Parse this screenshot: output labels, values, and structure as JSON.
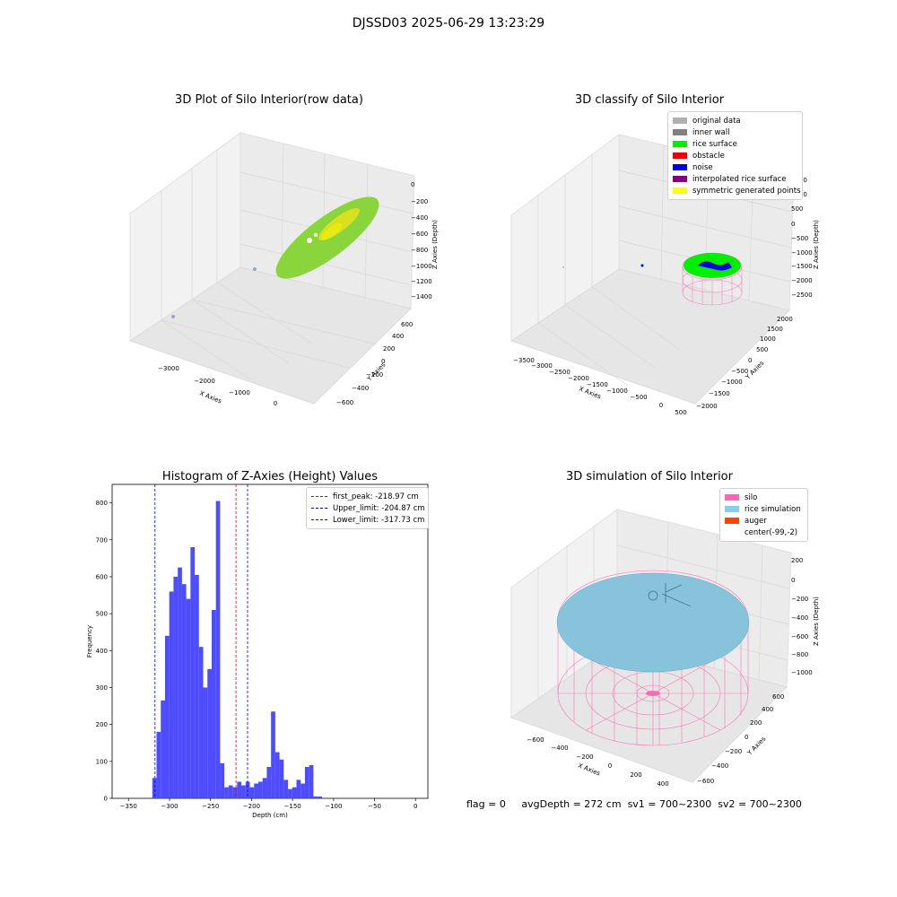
{
  "figure": {
    "suptitle": "DJSSD03 2025-06-29 13:23:29",
    "status": {
      "flag": "flag = 0",
      "avg_depth": "avgDepth = 272 cm",
      "sv1": "sv1 = 700~2300",
      "sv2": "sv2 = 700~2300"
    }
  },
  "plot_raw": {
    "title": "3D Plot of Silo Interior(row data)",
    "xlabel": "X Axies",
    "ylabel": "Y Axies",
    "zlabel": "Z Axies (Depth)",
    "xticks": [
      "−3000",
      "−2000",
      "−1000",
      "0"
    ],
    "yticks": [
      "−600",
      "−400",
      "−200",
      "0",
      "200",
      "400",
      "600"
    ],
    "zticks": [
      "0",
      "−200",
      "−400",
      "−600",
      "−800",
      "−1000",
      "−1200",
      "−1400"
    ],
    "colors": {
      "surface": "#8ad43c",
      "highlight": "#e8e000",
      "points": "#7fb0d0"
    }
  },
  "plot_classify": {
    "title": "3D classify of Silo Interior",
    "xlabel": "X Axies",
    "ylabel": "Y Axies",
    "zlabel": "Z Axies (Depth)",
    "xticks": [
      "−3500",
      "−3000",
      "−2500",
      "−2000",
      "−1500",
      "−1000",
      "−500",
      "0",
      "500"
    ],
    "yticks": [
      "−2000",
      "−1500",
      "−1000",
      "−500",
      "0",
      "500",
      "1000",
      "1500",
      "2000"
    ],
    "zticks": [
      "1500",
      "1000",
      "500",
      "0",
      "−500",
      "−1000",
      "−1500",
      "−2000",
      "−2500"
    ],
    "legend": [
      {
        "label": "original data",
        "color": "#b0b0b0"
      },
      {
        "label": "inner wall",
        "color": "#808080"
      },
      {
        "label": "rice surface",
        "color": "#00ee00"
      },
      {
        "label": "obstacle",
        "color": "#ee0000"
      },
      {
        "label": "noise",
        "color": "#0000dd"
      },
      {
        "label": "interpolated rice surface",
        "color": "#800080"
      },
      {
        "label": "symmetric generated points",
        "color": "#ffff00"
      }
    ]
  },
  "plot_sim": {
    "title": "3D simulation of Silo Interior",
    "xlabel": "X Axies",
    "ylabel": "Y Axies",
    "zlabel": "Z Axies (Depth)",
    "xticks": [
      "−600",
      "−400",
      "−200",
      "0",
      "200",
      "400"
    ],
    "yticks": [
      "−600",
      "−400",
      "−200",
      "0",
      "200",
      "400",
      "600"
    ],
    "zticks": [
      "200",
      "0",
      "−200",
      "−400",
      "−600",
      "−800",
      "−1000"
    ],
    "legend": [
      {
        "label": "silo",
        "color": "#ff69b4"
      },
      {
        "label": "rice simulation",
        "color": "#87ceeb"
      },
      {
        "label": "auger",
        "color": "#ff4500"
      },
      {
        "label": "center(-99,-2)",
        "color": "#ffffff"
      }
    ]
  },
  "chart_data": {
    "type": "bar",
    "title": "Histogram of Z-Axies (Height) Values",
    "xlabel": "Depth (cm)",
    "ylabel": "Frequency",
    "xlim": [
      -370,
      15
    ],
    "ylim": [
      0,
      850
    ],
    "xticks": [
      -350,
      -300,
      -250,
      -200,
      -150,
      -100,
      -50,
      0
    ],
    "yticks": [
      0,
      100,
      200,
      300,
      400,
      500,
      600,
      700,
      800
    ],
    "bar_color": "#4040ff",
    "bin_start": -321,
    "bin_width": 5.17,
    "values": [
      55,
      180,
      265,
      440,
      560,
      600,
      625,
      580,
      540,
      680,
      605,
      410,
      300,
      350,
      510,
      805,
      95,
      30,
      35,
      30,
      45,
      35,
      45,
      30,
      40,
      45,
      55,
      85,
      235,
      125,
      105,
      50,
      25,
      30,
      50,
      40,
      85,
      90,
      5,
      5
    ],
    "lines": [
      {
        "label": "first_peak: -218.97 cm",
        "value": -218.97,
        "color": "#dd0000"
      },
      {
        "label": "Upper_limit: -204.87 cm",
        "value": -204.87,
        "color": "#0000dd"
      },
      {
        "label": "Lower_limit: -317.73 cm",
        "value": -317.73,
        "color": "#0000dd"
      }
    ],
    "legend_position": "upper-right"
  }
}
